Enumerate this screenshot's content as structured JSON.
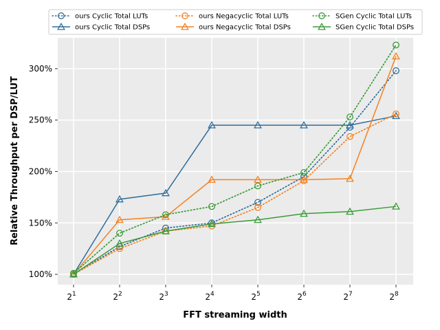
{
  "chart_data": {
    "type": "line",
    "title": "",
    "xlabel": "FFT streaming width",
    "ylabel": "Relative Throughput per DSP/LUT",
    "x": [
      1,
      2,
      3,
      4,
      5,
      6,
      7,
      8
    ],
    "x_tick_base": "2",
    "x_tick_exponents": [
      "1",
      "2",
      "3",
      "4",
      "5",
      "6",
      "7",
      "8"
    ],
    "yticks": [
      100,
      150,
      200,
      250,
      300
    ],
    "ytick_labels": [
      "100%",
      "150%",
      "200%",
      "250%",
      "300%"
    ],
    "ylim": [
      90,
      330
    ],
    "grid": true,
    "legend_position": "top-center",
    "series": [
      {
        "name": "ours Cyclic Total LUTs",
        "color": "#2f6e9c",
        "style": "dotted",
        "marker": "circle",
        "values": [
          100,
          127,
          145,
          150,
          170,
          195,
          243,
          298
        ]
      },
      {
        "name": "ours Cyclic Total DSPs",
        "color": "#2f6e9c",
        "style": "solid",
        "marker": "triangle",
        "values": [
          100,
          173,
          179,
          245,
          245,
          245,
          245,
          254
        ]
      },
      {
        "name": "ours Negacyclic Total LUTs",
        "color": "#f5811f",
        "style": "dotted",
        "marker": "circle",
        "values": [
          100,
          125,
          142,
          147,
          165,
          191,
          234,
          256
        ]
      },
      {
        "name": "ours Negacyclic Total DSPs",
        "color": "#f5811f",
        "style": "solid",
        "marker": "triangle",
        "values": [
          100,
          153,
          156,
          192,
          192,
          192,
          193,
          312
        ]
      },
      {
        "name": "SGen Cyclic Total LUTs",
        "color": "#3a9a3a",
        "style": "dotted",
        "marker": "circle",
        "values": [
          101,
          140,
          158,
          166,
          186,
          199,
          253,
          323
        ]
      },
      {
        "name": "SGen Cyclic Total DSPs",
        "color": "#3a9a3a",
        "style": "solid",
        "marker": "triangle",
        "values": [
          100,
          130,
          142,
          149,
          153,
          159,
          161,
          166
        ]
      }
    ]
  }
}
